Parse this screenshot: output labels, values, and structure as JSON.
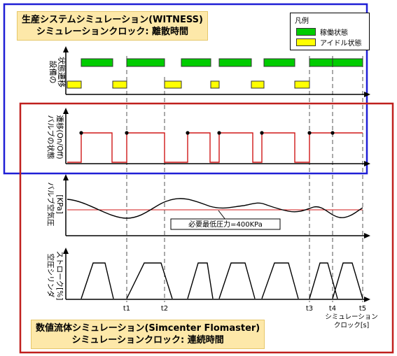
{
  "top_panel": {
    "title_line1": "生産システムシミュレーション(WITNESS)",
    "title_line2": "シミュレーションクロック: 離散時間",
    "frame_color": "#1f1fd6"
  },
  "bottom_panel": {
    "title_line1": "数値流体シミュレーション(Simcenter Flomaster)",
    "title_line2": "シミュレーションクロック: 連続時間",
    "frame_color": "#c0201e"
  },
  "legend": {
    "title": "凡例",
    "items": [
      {
        "label": "稼働状態",
        "color": "#00cc00"
      },
      {
        "label": "アイドル状態",
        "color": "#ffff00"
      }
    ]
  },
  "rows": {
    "equipment": {
      "label_line1": "設備の",
      "label_line2": "状態遷移"
    },
    "valve_state": {
      "label_line1": "バルブの状態",
      "label_line2": "遷移(On/Off)"
    },
    "valve_pressure": {
      "label_line1": "バルブ空気圧",
      "label_line2": "[KPa]"
    },
    "cylinder": {
      "label_line1": "空圧シリンダ",
      "label_line2": "ストローク[%]"
    }
  },
  "pressure_annotation": "必要最低圧力=400KPa",
  "time_markers": [
    "t1",
    "t2",
    "t3",
    "t4",
    "t5"
  ],
  "x_axis_label_line1": "シミュレーション",
  "x_axis_label_line2": "クロック[s]"
}
